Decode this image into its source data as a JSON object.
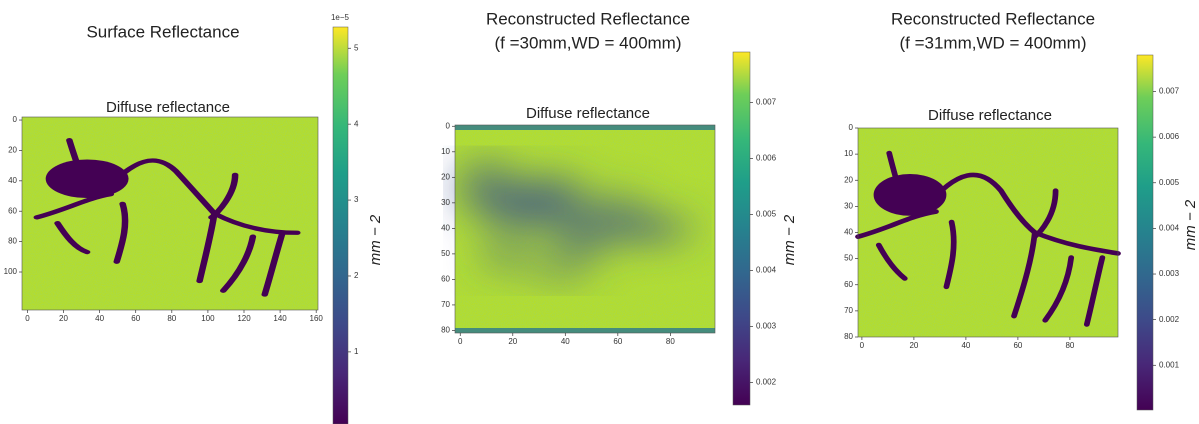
{
  "chart_data": [
    {
      "type": "heatmap",
      "title": "Surface Reflectance",
      "subtitle": "Diffuse reflectance",
      "xlim": [
        -3,
        161
      ],
      "ylim": [
        -2,
        125
      ],
      "xticks": [
        0,
        20,
        40,
        60,
        80,
        100,
        120,
        140,
        160
      ],
      "yticks": [
        0,
        20,
        40,
        60,
        80,
        100
      ],
      "clim": [
        0.05,
        5.28
      ],
      "cticks": [
        1,
        2,
        3,
        4,
        5
      ],
      "colorbar_offset": "1e−5",
      "colorbar_label": "mm − 2"
    },
    {
      "type": "heatmap",
      "title": "Reconstructed Reflectance",
      "subtitle": "(f =30mm,WD = 400mm)",
      "image_title": "Diffuse reflectance",
      "xlim": [
        -2,
        97
      ],
      "ylim": [
        -0.5,
        81
      ],
      "xticks": [
        0,
        20,
        40,
        60,
        80
      ],
      "yticks": [
        0,
        10,
        20,
        30,
        40,
        50,
        60,
        70,
        80
      ],
      "clim": [
        0.0016,
        0.0079
      ],
      "cticks": [
        0.002,
        0.003,
        0.004,
        0.005,
        0.006,
        0.007
      ],
      "colorbar_label": "mm − 2"
    },
    {
      "type": "heatmap",
      "title": "Reconstructed Reflectance",
      "subtitle": "(f =31mm,WD = 400mm)",
      "image_title": "Diffuse reflectance",
      "xlim": [
        -1.5,
        98.5
      ],
      "ylim": [
        0,
        80
      ],
      "xticks": [
        0,
        20,
        40,
        60,
        80
      ],
      "yticks": [
        0,
        10,
        20,
        30,
        40,
        50,
        60,
        70,
        80
      ],
      "clim": [
        2e-05,
        0.0078
      ],
      "cticks": [
        0.001,
        0.002,
        0.003,
        0.004,
        0.005,
        0.006,
        0.007
      ],
      "colorbar_label": "mm − 2"
    }
  ]
}
